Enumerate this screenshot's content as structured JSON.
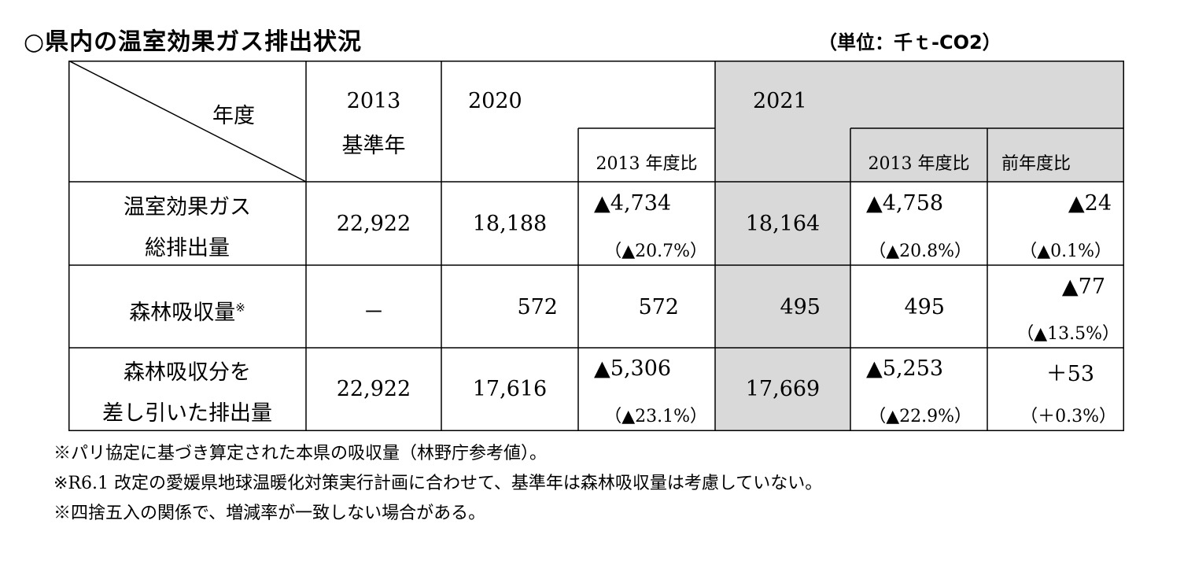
{
  "title": "○県内の温室効果ガス排出状況",
  "unit": "（単位：千ｔ-CO2）",
  "header": {
    "year_label": "年度",
    "col_2013": "2013",
    "col_2013_sub": "基準年",
    "col_2020": "2020",
    "col_2020_ratio": "2013 年度比",
    "col_2021": "2021",
    "col_2021_ratio": "2013 年度比",
    "col_2021_prev": "前年度比"
  },
  "rows": [
    {
      "label_line1": "温室効果ガス",
      "label_line2": "総排出量",
      "v2013": "22,922",
      "v2020": "18,188",
      "r2020": "▲4,734",
      "r2020_pct": "（▲20.7%）",
      "v2021": "18,164",
      "r2021": "▲4,758",
      "r2021_pct": "（▲20.8%）",
      "p2021": "▲24",
      "p2021_pct": "（▲0.1%）"
    },
    {
      "label_line1": "森林吸収量",
      "label_mark": "※",
      "v2013": "－",
      "v2020": "572",
      "r2020": "572",
      "v2021": "495",
      "r2021": "495",
      "p2021": "▲77",
      "p2021_pct": "（▲13.5%）"
    },
    {
      "label_line1": "森林吸収分を",
      "label_line2": "差し引いた排出量",
      "v2013": "22,922",
      "v2020": "17,616",
      "r2020": "▲5,306",
      "r2020_pct": "（▲23.1%）",
      "v2021": "17,669",
      "r2021": "▲5,253",
      "r2021_pct": "（▲22.9%）",
      "p2021": "＋53",
      "p2021_pct": "（＋0.3%）"
    }
  ],
  "notes": [
    "※パリ協定に基づき算定された本県の吸収量（林野庁参考値）。",
    "※R6.1 改定の愛媛県地球温暖化対策実行計画に合わせて、基準年は森林吸収量は考慮していない。",
    "※四捨五入の関係で、増減率が一致しない場合がある。"
  ]
}
